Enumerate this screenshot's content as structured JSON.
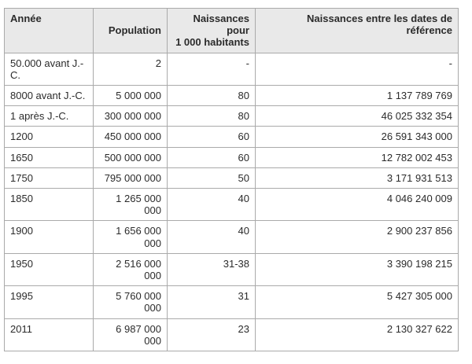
{
  "chart_data": {
    "type": "table",
    "title": "",
    "columns": [
      "Année",
      "Population",
      "Naissances pour 1 000 habitants",
      "Naissances entre les dates de référence"
    ],
    "column_alignments": [
      "left",
      "right",
      "right",
      "right"
    ],
    "rows": [
      [
        "50.000 avant J.-C.",
        "2",
        "-",
        "-"
      ],
      [
        "8000 avant J.-C.",
        "5 000 000",
        "80",
        "1 137 789 769"
      ],
      [
        "1 après J.-C.",
        "300 000 000",
        "80",
        "46 025 332 354"
      ],
      [
        "1200",
        "450 000 000",
        "60",
        "26 591 343 000"
      ],
      [
        "1650",
        "500 000 000",
        "60",
        "12 782 002 453"
      ],
      [
        "1750",
        "795 000 000",
        "50",
        "3 171 931 513"
      ],
      [
        "1850",
        "1 265 000 000",
        "40",
        "4 046 240 009"
      ],
      [
        "1900",
        "1 656 000 000",
        "40",
        "2 900 237 856"
      ],
      [
        "1950",
        "2 516 000 000",
        "31-38",
        "3 390 198 215"
      ],
      [
        "1995",
        "5 760 000 000",
        "31",
        "5 427 305 000"
      ],
      [
        "2011",
        "6 987 000 000",
        "23",
        "2 130 327 622"
      ]
    ]
  },
  "colors": {
    "header_bg": "#e9e9e9",
    "border": "#aaaaaa",
    "text": "#2b2b2b",
    "background": "#ffffff"
  }
}
